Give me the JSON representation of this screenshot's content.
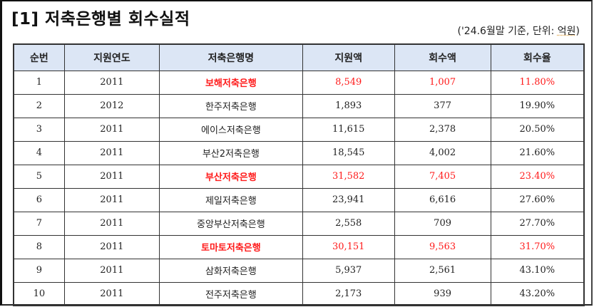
{
  "title": "[1] 저축은행별 회수실적",
  "subtitle": {
    "prefix": "('24.6월말 기준, 단위: ",
    "unit": "억원",
    "suffix": ")"
  },
  "colors": {
    "highlight": "#ff1a1a",
    "header_bg": "#dce6f5"
  },
  "table": {
    "headers": [
      "순번",
      "지원연도",
      "저축은행명",
      "지원액",
      "회수액",
      "회수율"
    ],
    "rows": [
      {
        "no": "1",
        "year": "2011",
        "name": "보해저축은행",
        "support": "8,549",
        "recovered": "1,007",
        "rate": "11.80%",
        "highlight": true
      },
      {
        "no": "2",
        "year": "2012",
        "name": "한주저축은행",
        "support": "1,893",
        "recovered": "377",
        "rate": "19.90%",
        "highlight": false
      },
      {
        "no": "3",
        "year": "2011",
        "name": "에이스저축은행",
        "support": "11,615",
        "recovered": "2,378",
        "rate": "20.50%",
        "highlight": false
      },
      {
        "no": "4",
        "year": "2011",
        "name": "부산2저축은행",
        "support": "18,545",
        "recovered": "4,002",
        "rate": "21.60%",
        "highlight": false
      },
      {
        "no": "5",
        "year": "2011",
        "name": "부산저축은행",
        "support": "31,582",
        "recovered": "7,405",
        "rate": "23.40%",
        "highlight": true
      },
      {
        "no": "6",
        "year": "2011",
        "name": "제일저축은행",
        "support": "23,941",
        "recovered": "6,616",
        "rate": "27.60%",
        "highlight": false
      },
      {
        "no": "7",
        "year": "2011",
        "name": "중앙부산저축은행",
        "support": "2,558",
        "recovered": "709",
        "rate": "27.70%",
        "highlight": false
      },
      {
        "no": "8",
        "year": "2011",
        "name": "토마토저축은행",
        "support": "30,151",
        "recovered": "9,563",
        "rate": "31.70%",
        "highlight": true
      },
      {
        "no": "9",
        "year": "2011",
        "name": "삼화저축은행",
        "support": "5,937",
        "recovered": "2,561",
        "rate": "43.10%",
        "highlight": false
      },
      {
        "no": "10",
        "year": "2011",
        "name": "전주저축은행",
        "support": "2,173",
        "recovered": "939",
        "rate": "43.20%",
        "highlight": false
      }
    ]
  }
}
